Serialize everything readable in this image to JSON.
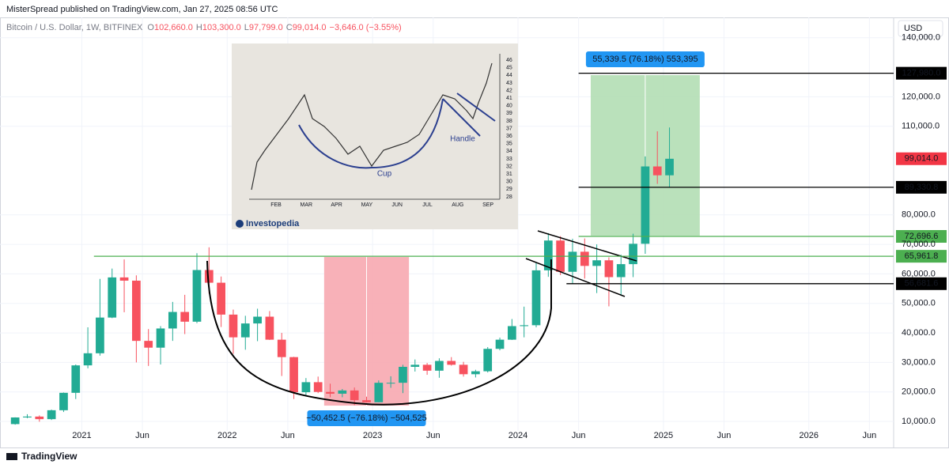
{
  "header": {
    "publisher": "MisterSpread published on TradingView.com, Jan 27, 2025 08:56 UTC"
  },
  "chart_data": {
    "type": "candlestick",
    "symbol": "Bitcoin / U.S. Dollar, 1W, BITFINEX",
    "ohlc": [
      {
        "key": "O",
        "value": "102,660.0"
      },
      {
        "key": "H",
        "value": "103,300.0"
      },
      {
        "key": "L",
        "value": "97,799.0"
      },
      {
        "key": "C",
        "value": "99,014.0"
      }
    ],
    "change": "−3,646.0 (−3.55%)",
    "currency": "USD",
    "up_color": "#22ab94",
    "down_color": "#f7525f",
    "grid": true,
    "x": [
      "2020-07",
      "2020-08",
      "2020-09",
      "2020-10",
      "2020-11",
      "2020-12",
      "2021-01",
      "2021-02",
      "2021-03",
      "2021-04",
      "2021-05",
      "2021-06",
      "2021-07",
      "2021-08",
      "2021-09",
      "2021-10",
      "2021-11",
      "2021-12",
      "2022-01",
      "2022-02",
      "2022-03",
      "2022-04",
      "2022-05",
      "2022-06",
      "2022-07",
      "2022-08",
      "2022-09",
      "2022-10",
      "2022-11",
      "2022-12",
      "2023-01",
      "2023-02",
      "2023-03",
      "2023-04",
      "2023-05",
      "2023-06",
      "2023-07",
      "2023-08",
      "2023-09",
      "2023-10",
      "2023-11",
      "2023-12",
      "2024-01",
      "2024-02",
      "2024-03",
      "2024-04",
      "2024-05",
      "2024-06",
      "2024-07",
      "2024-08",
      "2024-09",
      "2024-10",
      "2024-11",
      "2024-12",
      "2025-01"
    ],
    "open": [
      9100,
      11350,
      11650,
      10780,
      13800,
      19700,
      29000,
      33100,
      45200,
      58800,
      57700,
      37300,
      35000,
      41500,
      47100,
      43800,
      61300,
      57000,
      46200,
      38500,
      43200,
      45500,
      37700,
      31800,
      19900,
      23300,
      20000,
      19400,
      20500,
      17200,
      16500,
      23100,
      23100,
      28500,
      29200,
      27200,
      30500,
      29200,
      26000,
      27000,
      34600,
      37700,
      42300,
      42600,
      61200,
      71300,
      60700,
      67500,
      62700,
      64600,
      58900,
      63300,
      70200,
      96400,
      93400
    ],
    "high": [
      11400,
      12450,
      12050,
      14000,
      19800,
      29300,
      41900,
      58300,
      61800,
      64900,
      59500,
      41300,
      42300,
      50500,
      52900,
      67000,
      69000,
      59100,
      47900,
      45800,
      48200,
      47400,
      40000,
      31900,
      24700,
      25200,
      22800,
      21000,
      21500,
      18400,
      23900,
      25300,
      29200,
      31000,
      29800,
      31400,
      31800,
      30200,
      27500,
      35200,
      38400,
      44700,
      48900,
      64000,
      73800,
      72800,
      71900,
      72000,
      70000,
      65600,
      66500,
      73600,
      99800,
      108300,
      109600
    ],
    "low": [
      8900,
      11100,
      9900,
      10500,
      13200,
      17600,
      28000,
      32300,
      45000,
      47000,
      30000,
      28800,
      29300,
      37300,
      39600,
      43300,
      53300,
      42000,
      32900,
      34300,
      37200,
      37600,
      25400,
      17600,
      18800,
      19600,
      18200,
      18200,
      15500,
      16300,
      16500,
      21400,
      19600,
      26900,
      25800,
      24800,
      28900,
      25200,
      24900,
      26600,
      34100,
      37600,
      38500,
      41900,
      59000,
      59600,
      56500,
      58400,
      53500,
      49000,
      52600,
      58900,
      66800,
      90500,
      89200
    ],
    "close": [
      11350,
      11650,
      10780,
      13800,
      19700,
      29000,
      33100,
      45200,
      58800,
      57700,
      37300,
      35000,
      41500,
      47100,
      43800,
      61300,
      57000,
      46200,
      38500,
      43200,
      45500,
      37700,
      31800,
      19900,
      23300,
      20000,
      19400,
      20500,
      17200,
      16500,
      23100,
      23100,
      28500,
      29200,
      27200,
      30500,
      29200,
      26000,
      27000,
      34600,
      37700,
      42300,
      42600,
      61200,
      71300,
      60700,
      67500,
      62700,
      64600,
      58900,
      63300,
      70200,
      96400,
      93400,
      99000
    ],
    "xlim": [
      "2020-07",
      "2026-08"
    ],
    "xticks": [
      {
        "value": "2021-01",
        "label": "2021"
      },
      {
        "value": "2021-06",
        "label": "Jun"
      },
      {
        "value": "2022-01",
        "label": "2022"
      },
      {
        "value": "2022-06",
        "label": "Jun"
      },
      {
        "value": "2023-01",
        "label": "2023"
      },
      {
        "value": "2023-06",
        "label": "Jun"
      },
      {
        "value": "2024-01",
        "label": "2024"
      },
      {
        "value": "2024-06",
        "label": "Jun"
      },
      {
        "value": "2025-01",
        "label": "2025"
      },
      {
        "value": "2025-06",
        "label": "Jun"
      },
      {
        "value": "2026-01",
        "label": "2026"
      },
      {
        "value": "2026-06",
        "label": "Jun"
      }
    ],
    "ylim": [
      6800,
      146900
    ],
    "yticks": [
      {
        "value": 10000,
        "label": "10,000.0"
      },
      {
        "value": 20000,
        "label": "20,000.0"
      },
      {
        "value": 30000,
        "label": "30,000.0"
      },
      {
        "value": 40000,
        "label": "40,000.0"
      },
      {
        "value": 50000,
        "label": "50,000.0"
      },
      {
        "value": 60000,
        "label": "60,000.0"
      },
      {
        "value": 70000,
        "label": "70,000.0"
      },
      {
        "value": 80000,
        "label": "80,000.0"
      },
      {
        "value": 110000,
        "label": "110,000.0"
      },
      {
        "value": 120000,
        "label": "120,000.0"
      },
      {
        "value": 140000,
        "label": "140,000.0"
      }
    ],
    "price_lines": [
      {
        "value": 127980,
        "label": "127,980.0",
        "from": "2024-06",
        "color": "#000000"
      },
      {
        "value": 99014,
        "label": "99,014.0",
        "color": "#f23645"
      },
      {
        "value": 89330.8,
        "label": "89,330.8",
        "from": "2024-06",
        "color": "#000000"
      },
      {
        "value": 72696.6,
        "label": "72,696.6",
        "from": "2024-06",
        "color": "#4caf50"
      },
      {
        "value": 65961.8,
        "label": "65,961.8",
        "from": "2021-02",
        "color": "#4caf50"
      },
      {
        "value": 56681.6,
        "label": "56,681.6",
        "from": "2024-05",
        "color": "#000000"
      }
    ],
    "boxes": [
      {
        "from": "2022-09",
        "to": "2023-04",
        "low": 15360,
        "high": 65720,
        "color": "#f7a9b0",
        "label": "−50,452.5 (−76.18%) −504,525",
        "label_pos": "bottom"
      },
      {
        "from": "2024-07",
        "to": "2025-04",
        "low": 72950,
        "high": 127330,
        "color": "#b3deb4",
        "label": "55,339.5 (76.18%) 553,395",
        "label_pos": "top"
      }
    ]
  },
  "inset": {
    "yticks": [
      28,
      29,
      30,
      31,
      32,
      33,
      34,
      35,
      36,
      37,
      38,
      39,
      40,
      41,
      42,
      43,
      44,
      45,
      46
    ],
    "months": [
      "FEB",
      "MAR",
      "APR",
      "MAY",
      "JUN",
      "JUL",
      "AUG",
      "SEP"
    ],
    "cup": "Cup",
    "handle": "Handle",
    "brand": "Investopedia"
  },
  "footer": {
    "brand": "TradingView"
  }
}
